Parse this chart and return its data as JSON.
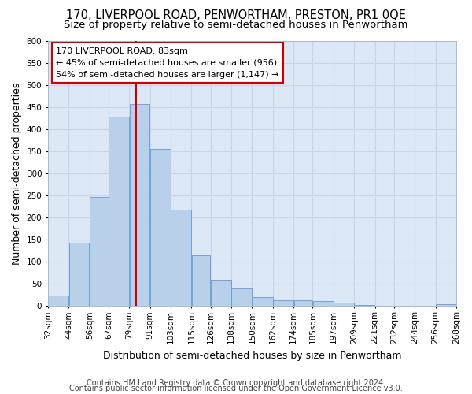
{
  "title1": "170, LIVERPOOL ROAD, PENWORTHAM, PRESTON, PR1 0QE",
  "title2": "Size of property relative to semi-detached houses in Penwortham",
  "xlabel": "Distribution of semi-detached houses by size in Penwortham",
  "ylabel": "Number of semi-detached properties",
  "footnote_line1": "Contains HM Land Registry data © Crown copyright and database right 2024.",
  "footnote_line2": "Contains public sector information licensed under the Open Government Licence v3.0.",
  "annotation_line1": "170 LIVERPOOL ROAD: 83sqm",
  "annotation_line2": "← 45% of semi-detached houses are smaller (956)",
  "annotation_line3": "54% of semi-detached houses are larger (1,147) →",
  "bar_left_edges": [
    32,
    44,
    56,
    67,
    79,
    91,
    103,
    115,
    126,
    138,
    150,
    162,
    174,
    185,
    197,
    209,
    221,
    232,
    244,
    256
  ],
  "bar_widths": [
    12,
    12,
    11,
    12,
    12,
    12,
    12,
    11,
    12,
    12,
    12,
    12,
    11,
    12,
    12,
    12,
    11,
    12,
    12,
    12
  ],
  "bar_heights": [
    24,
    143,
    247,
    428,
    457,
    356,
    218,
    115,
    59,
    40,
    20,
    14,
    13,
    11,
    8,
    3,
    1,
    1,
    1,
    5
  ],
  "bar_color": "#b8d0ea",
  "bar_edge_color": "#6699cc",
  "vline_color": "#cc0000",
  "vline_x": 83,
  "ylim": [
    0,
    600
  ],
  "yticks": [
    0,
    50,
    100,
    150,
    200,
    250,
    300,
    350,
    400,
    450,
    500,
    550,
    600
  ],
  "xtick_labels": [
    "32sqm",
    "44sqm",
    "56sqm",
    "67sqm",
    "79sqm",
    "91sqm",
    "103sqm",
    "115sqm",
    "126sqm",
    "138sqm",
    "150sqm",
    "162sqm",
    "174sqm",
    "185sqm",
    "197sqm",
    "209sqm",
    "221sqm",
    "232sqm",
    "244sqm",
    "256sqm",
    "268sqm"
  ],
  "grid_color": "#c8d4e8",
  "plot_bg_color": "#dce8f5",
  "box_edge_color": "#cc0000",
  "title_fontsize": 10.5,
  "subtitle_fontsize": 9.5,
  "annotation_fontsize": 8,
  "axis_label_fontsize": 9,
  "tick_fontsize": 7.5,
  "footnote_fontsize": 7
}
